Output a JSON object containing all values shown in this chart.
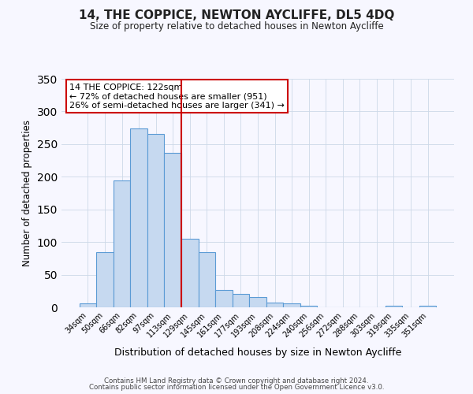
{
  "title": "14, THE COPPICE, NEWTON AYCLIFFE, DL5 4DQ",
  "subtitle": "Size of property relative to detached houses in Newton Aycliffe",
  "xlabel": "Distribution of detached houses by size in Newton Aycliffe",
  "ylabel": "Number of detached properties",
  "bar_labels": [
    "34sqm",
    "50sqm",
    "66sqm",
    "82sqm",
    "97sqm",
    "113sqm",
    "129sqm",
    "145sqm",
    "161sqm",
    "177sqm",
    "193sqm",
    "208sqm",
    "224sqm",
    "240sqm",
    "256sqm",
    "272sqm",
    "288sqm",
    "303sqm",
    "319sqm",
    "335sqm",
    "351sqm"
  ],
  "bar_values": [
    6,
    84,
    194,
    274,
    265,
    236,
    105,
    84,
    27,
    20,
    16,
    7,
    6,
    2,
    0,
    0,
    0,
    0,
    2,
    0,
    2
  ],
  "bar_color": "#c6d9f0",
  "bar_edge_color": "#5b9bd5",
  "vline_x": 5.5,
  "vline_color": "#cc0000",
  "annotation_title": "14 THE COPPICE: 122sqm",
  "annotation_line1": "← 72% of detached houses are smaller (951)",
  "annotation_line2": "26% of semi-detached houses are larger (341) →",
  "annotation_box_color": "#ffffff",
  "annotation_box_edge_color": "#cc0000",
  "ylim": [
    0,
    350
  ],
  "yticks": [
    0,
    50,
    100,
    150,
    200,
    250,
    300,
    350
  ],
  "footer1": "Contains HM Land Registry data © Crown copyright and database right 2024.",
  "footer2": "Contains public sector information licensed under the Open Government Licence v3.0.",
  "bg_color": "#f7f7ff",
  "figsize": [
    6.0,
    5.0
  ],
  "dpi": 100
}
